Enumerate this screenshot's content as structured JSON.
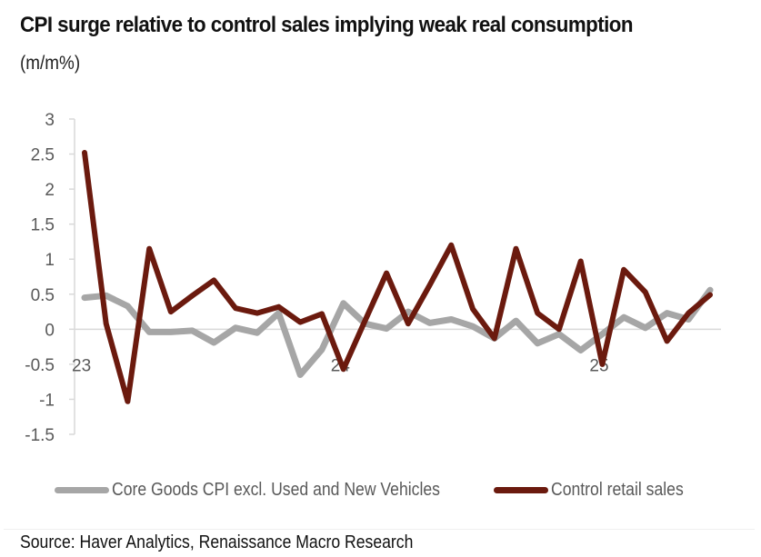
{
  "chart_data": {
    "type": "line",
    "title": "CPI surge relative to control sales implying weak real consumption",
    "subtitle": "(m/m%)",
    "xlabel": "",
    "ylabel": "",
    "ylim": [
      -1.5,
      3
    ],
    "yticks": [
      "3",
      "2.5",
      "2",
      "1.5",
      "1",
      "0.5",
      "0",
      "-0.5",
      "-1",
      "-1.5"
    ],
    "ytick_values": [
      3,
      2.5,
      2,
      1.5,
      1,
      0.5,
      0,
      -0.5,
      -1,
      -1.5
    ],
    "x": [
      "Jan-23",
      "Feb-23",
      "Mar-23",
      "Apr-23",
      "May-23",
      "Jun-23",
      "Jul-23",
      "Aug-23",
      "Sep-23",
      "Oct-23",
      "Nov-23",
      "Dec-23",
      "Jan-24",
      "Feb-24",
      "Mar-24",
      "Apr-24",
      "May-24",
      "Jun-24",
      "Jul-24",
      "Aug-24",
      "Sep-24",
      "Oct-24",
      "Nov-24",
      "Dec-24",
      "Jan-25",
      "Feb-25",
      "Mar-25",
      "Apr-25",
      "May-25",
      "Jun-25"
    ],
    "xtick_labels": [
      {
        "index": 0,
        "label": "23"
      },
      {
        "index": 12,
        "label": "24"
      },
      {
        "index": 24,
        "label": "25"
      }
    ],
    "grid": false,
    "legend_position": "bottom",
    "series": [
      {
        "name": "Core Goods CPI excl. Used and New Vehicles",
        "color": "#a6a6a6",
        "values": [
          0.45,
          0.48,
          0.33,
          -0.04,
          -0.04,
          -0.02,
          -0.19,
          0.02,
          -0.05,
          0.23,
          -0.65,
          -0.29,
          0.37,
          0.08,
          0.01,
          0.25,
          0.09,
          0.14,
          0.04,
          -0.13,
          0.12,
          -0.2,
          -0.07,
          -0.3,
          -0.07,
          0.17,
          0.02,
          0.23,
          0.14,
          0.56
        ]
      },
      {
        "name": "Control retail sales",
        "color": "#6b1a0e",
        "values": [
          2.52,
          0.08,
          -1.03,
          1.15,
          0.25,
          0.48,
          0.7,
          0.3,
          0.23,
          0.32,
          0.1,
          0.22,
          -0.57,
          0.12,
          0.8,
          0.08,
          0.63,
          1.2,
          0.29,
          -0.13,
          1.15,
          0.23,
          0.0,
          0.97,
          -0.5,
          0.85,
          0.53,
          -0.17,
          0.23,
          0.49
        ]
      }
    ]
  },
  "source": "Source: Haver Analytics, Renaissance Macro Research"
}
